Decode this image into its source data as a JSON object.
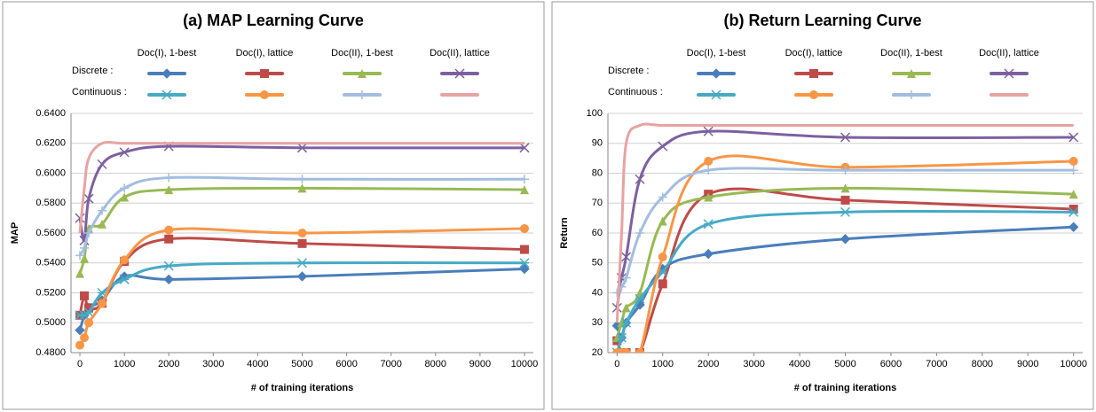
{
  "chart_data": [
    {
      "type": "line",
      "title": "(a) MAP Learning Curve",
      "x_label": "# of training iterations",
      "y_label": "MAP",
      "legend_columns": [
        "Doc(I), 1-best",
        "Doc(I), lattice",
        "Doc(II), 1-best",
        "Doc(II), lattice"
      ],
      "legend_rows": [
        "Discrete :",
        "Continuous :"
      ],
      "x": [
        0,
        100,
        200,
        500,
        1000,
        2000,
        5000,
        10000
      ],
      "xlim": [
        -200,
        10200
      ],
      "xticks": [
        0,
        1000,
        2000,
        3000,
        4000,
        5000,
        6000,
        7000,
        8000,
        9000,
        10000
      ],
      "ylim": [
        0.48,
        0.64
      ],
      "yticks": [
        {
          "value": 0.48,
          "label": "0.4800"
        },
        {
          "value": 0.5,
          "label": "0.5000"
        },
        {
          "value": 0.52,
          "label": "0.5200"
        },
        {
          "value": 0.54,
          "label": "0.5400"
        },
        {
          "value": 0.56,
          "label": "0.5600"
        },
        {
          "value": 0.58,
          "label": "0.5800"
        },
        {
          "value": 0.6,
          "label": "0.6000"
        },
        {
          "value": 0.62,
          "label": "0.6200"
        },
        {
          "value": 0.64,
          "label": "0.6400"
        }
      ],
      "grid": true,
      "series": [
        {
          "color": "#4a7ebb",
          "marker": "diamond",
          "values": [
            0.495,
            0.505,
            0.51,
            0.515,
            0.531,
            0.529,
            0.531,
            0.536
          ]
        },
        {
          "color": "#be4b48",
          "marker": "square",
          "values": [
            0.505,
            0.518,
            0.51,
            0.513,
            0.541,
            0.556,
            0.553,
            0.549
          ]
        },
        {
          "color": "#98b954",
          "marker": "triangle",
          "values": [
            0.533,
            0.543,
            0.563,
            0.566,
            0.584,
            0.589,
            0.59,
            0.589
          ]
        },
        {
          "color": "#7d60a0",
          "marker": "x",
          "values": [
            0.57,
            0.555,
            0.583,
            0.606,
            0.614,
            0.618,
            0.617,
            0.617
          ]
        },
        {
          "color": "#46aac5",
          "marker": "star",
          "values": [
            0.505,
            0.505,
            0.507,
            0.52,
            0.529,
            0.538,
            0.54,
            0.54
          ]
        },
        {
          "color": "#f79646",
          "marker": "circle",
          "values": [
            0.485,
            0.49,
            0.5,
            0.513,
            0.542,
            0.562,
            0.56,
            0.563
          ]
        },
        {
          "color": "#a3bde0",
          "marker": "plus",
          "values": [
            0.545,
            0.55,
            0.56,
            0.575,
            0.59,
            0.597,
            0.596,
            0.596
          ]
        },
        {
          "color": "#e6a3a2",
          "marker": "none",
          "values": [
            0.56,
            0.59,
            0.61,
            0.62,
            0.62,
            0.62,
            0.62,
            0.62
          ]
        }
      ]
    },
    {
      "type": "line",
      "title": "(b) Return Learning Curve",
      "x_label": "# of training iterations",
      "y_label": "Return",
      "legend_columns": [
        "Doc(I), 1-best",
        "Doc(I), lattice",
        "Doc(II), 1-best",
        "Doc(II), lattice"
      ],
      "legend_rows": [
        "Discrete :",
        "Continuous :"
      ],
      "x": [
        0,
        100,
        200,
        500,
        1000,
        2000,
        5000,
        10000
      ],
      "xlim": [
        -200,
        10200
      ],
      "xticks": [
        0,
        1000,
        2000,
        3000,
        4000,
        5000,
        6000,
        7000,
        8000,
        9000,
        10000
      ],
      "ylim": [
        20,
        100
      ],
      "yticks": [
        20,
        30,
        40,
        50,
        60,
        70,
        80,
        90,
        100
      ],
      "grid": true,
      "series": [
        {
          "color": "#4a7ebb",
          "marker": "diamond",
          "values": [
            29,
            25,
            30,
            36,
            48,
            53,
            58,
            62
          ]
        },
        {
          "color": "#be4b48",
          "marker": "square",
          "values": [
            24,
            20,
            20,
            20,
            43,
            73,
            71,
            68
          ]
        },
        {
          "color": "#98b954",
          "marker": "triangle",
          "values": [
            25,
            30,
            35,
            40,
            64,
            72,
            75,
            73
          ]
        },
        {
          "color": "#7d60a0",
          "marker": "x",
          "values": [
            35,
            45,
            52,
            78,
            89,
            94,
            92,
            92
          ]
        },
        {
          "color": "#46aac5",
          "marker": "star",
          "values": [
            20,
            25,
            30,
            38,
            47,
            63,
            67,
            67
          ]
        },
        {
          "color": "#f79646",
          "marker": "circle",
          "values": [
            20,
            20,
            20,
            20,
            52,
            84,
            82,
            84
          ]
        },
        {
          "color": "#a3bde0",
          "marker": "plus",
          "values": [
            40,
            42,
            45,
            60,
            72,
            81,
            81,
            81
          ]
        },
        {
          "color": "#e6a3a2",
          "marker": "none",
          "values": [
            30,
            60,
            90,
            96,
            96,
            96,
            96,
            96
          ]
        }
      ]
    }
  ]
}
